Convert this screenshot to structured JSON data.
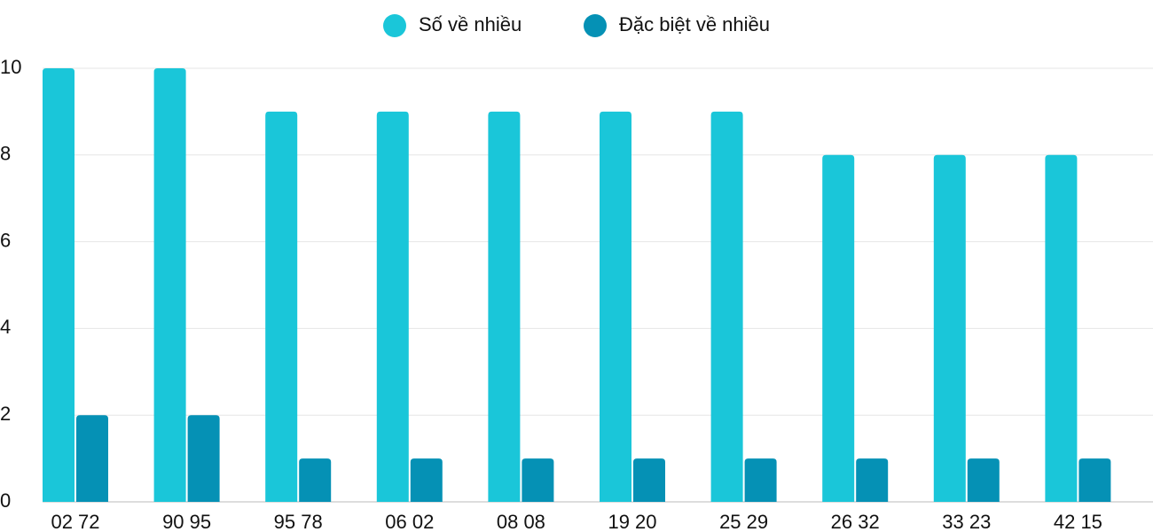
{
  "chart_data": {
    "type": "bar",
    "categories": [
      "02 72",
      "90 95",
      "95 78",
      "06 02",
      "08 08",
      "19 20",
      "25 29",
      "26 32",
      "33 23",
      "42 15"
    ],
    "series": [
      {
        "name": "Số về nhiều",
        "color": "#1ac6d9",
        "values": [
          10,
          10,
          9,
          9,
          9,
          9,
          9,
          8,
          8,
          8
        ]
      },
      {
        "name": "Đặc biệt về nhiều",
        "color": "#0591b5",
        "values": [
          2,
          2,
          1,
          1,
          1,
          1,
          1,
          1,
          1,
          1
        ]
      }
    ],
    "ylim": [
      0,
      10
    ],
    "yticks": [
      0,
      2,
      4,
      6,
      8,
      10
    ],
    "grid": true,
    "legend": "top"
  }
}
